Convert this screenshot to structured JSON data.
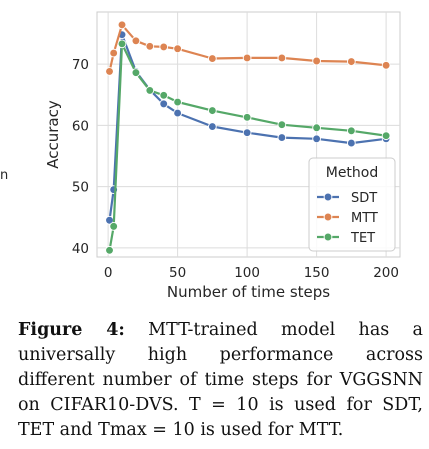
{
  "chart_data": {
    "type": "line",
    "title": "",
    "xlabel": "Number of time steps",
    "ylabel": "Accuracy",
    "xlim": [
      -8,
      210
    ],
    "ylim": [
      38.5,
      78.5
    ],
    "xticks": [
      0,
      50,
      100,
      150,
      200
    ],
    "yticks": [
      40,
      50,
      60,
      70
    ],
    "grid": true,
    "legend": {
      "title": "Method",
      "position": "lower-right"
    },
    "series": [
      {
        "name": "SDT",
        "color": "#4c72b0",
        "x": [
          1,
          4,
          10,
          20,
          30,
          40,
          50,
          75,
          100,
          125,
          150,
          175,
          200
        ],
        "y": [
          44.5,
          49.5,
          74.8,
          68.8,
          65.8,
          63.5,
          62.0,
          59.8,
          58.8,
          58.0,
          57.8,
          57.1,
          57.8
        ]
      },
      {
        "name": "MTT",
        "color": "#dd8452",
        "x": [
          1,
          4,
          10,
          20,
          30,
          40,
          50,
          75,
          100,
          125,
          150,
          175,
          200
        ],
        "y": [
          68.8,
          71.8,
          76.4,
          73.8,
          72.9,
          72.8,
          72.5,
          70.9,
          71.0,
          71.0,
          70.5,
          70.4,
          69.8
        ]
      },
      {
        "name": "TET",
        "color": "#55a868",
        "x": [
          1,
          4,
          10,
          20,
          30,
          40,
          50,
          75,
          100,
          125,
          150,
          175,
          200
        ],
        "y": [
          39.6,
          43.5,
          73.3,
          68.6,
          65.7,
          64.9,
          63.8,
          62.4,
          61.3,
          60.1,
          59.6,
          59.1,
          58.3
        ]
      }
    ]
  },
  "fragments": {
    "cut_letter": "n"
  },
  "caption": {
    "label": "Figure 4:",
    "text": "MTT-trained model has a universally high performance across different number of time steps for VGGSNN on CIFAR10-DVS. T = 10 is used for SDT, TET and Tmax = 10 is used for MTT."
  }
}
